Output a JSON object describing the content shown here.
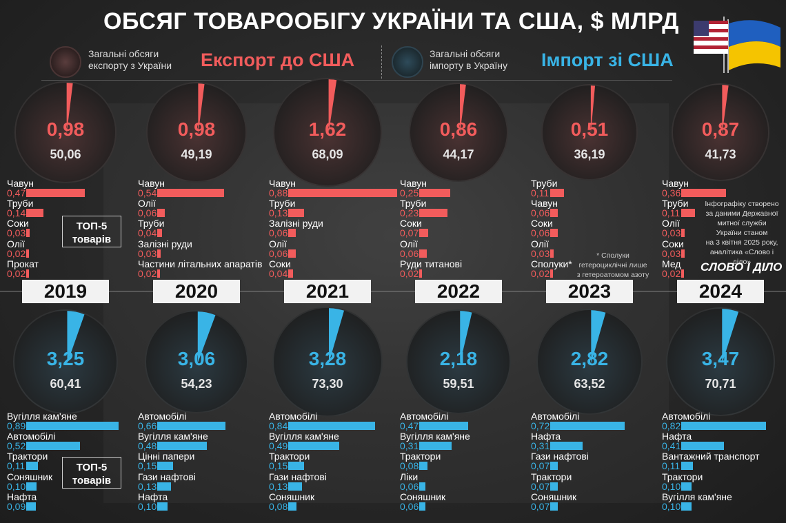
{
  "title": "ОБСЯГ ТОВАРООБІГУ УКРАЇНИ ТА США, $ МЛРД",
  "legend": {
    "export_caption": "Загальні обсяги експорту з України",
    "export_label": "Експорт до США",
    "import_caption": "Загальні обсяги імпорту в Україну",
    "import_label": "Імпорт зі США"
  },
  "top5_label_line1": "ТОП-5",
  "top5_label_line2": "товарів",
  "footnote": {
    "line1": "* Сполуки",
    "line2": "гетероциклічні лише",
    "line3": "з гетероатомом азоту"
  },
  "source_note": {
    "line1": "Інфографіку створено",
    "line2": "за даними Державної",
    "line3": "митної служби",
    "line4": "України станом",
    "line5": "на 3 квітня 2025 року,",
    "line6": "аналітика «Слово і діло»"
  },
  "brand": "СЛОВО І ДІЛО",
  "colors": {
    "export": "#f25c5c",
    "import": "#39b4e6",
    "export_circle": "#4a3232",
    "import_circle": "#2b3a42"
  },
  "chart_data": {
    "type": "pie",
    "years": [
      {
        "year": "2019",
        "export_to_usa": "0,98",
        "export_total": "50,06",
        "import_from_usa": "3,25",
        "import_total": "60,41",
        "export_top": [
          {
            "name": "Чавун",
            "value": "0,47"
          },
          {
            "name": "Труби",
            "value": "0,14"
          },
          {
            "name": "Соки",
            "value": "0,03"
          },
          {
            "name": "Олії",
            "value": "0,02"
          },
          {
            "name": "Прокат",
            "value": "0,02"
          }
        ],
        "import_top": [
          {
            "name": "Вугілля кам'яне",
            "value": "0,89"
          },
          {
            "name": "Автомобілі",
            "value": "0,52"
          },
          {
            "name": "Трактори",
            "value": "0,11"
          },
          {
            "name": "Соняшник",
            "value": "0,10"
          },
          {
            "name": "Нафта",
            "value": "0,09"
          }
        ]
      },
      {
        "year": "2020",
        "export_to_usa": "0,98",
        "export_total": "49,19",
        "import_from_usa": "3,06",
        "import_total": "54,23",
        "export_top": [
          {
            "name": "Чавун",
            "value": "0,54"
          },
          {
            "name": "Олії",
            "value": "0,06"
          },
          {
            "name": "Труби",
            "value": "0,04"
          },
          {
            "name": "Залізні руди",
            "value": "0,03"
          },
          {
            "name": "Частини літальних апаратів",
            "value": "0,02"
          }
        ],
        "import_top": [
          {
            "name": "Автомобілі",
            "value": "0,66"
          },
          {
            "name": "Вугілля кам'яне",
            "value": "0,48"
          },
          {
            "name": "Цінні папери",
            "value": "0,15"
          },
          {
            "name": "Гази нафтові",
            "value": "0,13"
          },
          {
            "name": "Нафта",
            "value": "0,10"
          }
        ]
      },
      {
        "year": "2021",
        "export_to_usa": "1,62",
        "export_total": "68,09",
        "import_from_usa": "3,28",
        "import_total": "73,30",
        "export_top": [
          {
            "name": "Чавун",
            "value": "0,88"
          },
          {
            "name": "Труби",
            "value": "0,13"
          },
          {
            "name": "Залізні руди",
            "value": "0,06"
          },
          {
            "name": "Олії",
            "value": "0,06"
          },
          {
            "name": "Соки",
            "value": "0,04"
          }
        ],
        "import_top": [
          {
            "name": "Автомобілі",
            "value": "0,84"
          },
          {
            "name": "Вугілля кам'яне",
            "value": "0,49"
          },
          {
            "name": "Трактори",
            "value": "0,15"
          },
          {
            "name": "Гази нафтові",
            "value": "0,13"
          },
          {
            "name": "Соняшник",
            "value": "0,08"
          }
        ]
      },
      {
        "year": "2022",
        "export_to_usa": "0,86",
        "export_total": "44,17",
        "import_from_usa": "2,18",
        "import_total": "59,51",
        "export_top": [
          {
            "name": "Чавун",
            "value": "0,25"
          },
          {
            "name": "Труби",
            "value": "0,23"
          },
          {
            "name": "Соки",
            "value": "0,07"
          },
          {
            "name": "Олії",
            "value": "0,06"
          },
          {
            "name": "Руди титанові",
            "value": "0,02"
          }
        ],
        "import_top": [
          {
            "name": "Автомобілі",
            "value": "0,47"
          },
          {
            "name": "Вугілля кам'яне",
            "value": "0,31"
          },
          {
            "name": "Трактори",
            "value": "0,08"
          },
          {
            "name": "Ліки",
            "value": "0,06"
          },
          {
            "name": "Соняшник",
            "value": "0,06"
          }
        ]
      },
      {
        "year": "2023",
        "export_to_usa": "0,51",
        "export_total": "36,19",
        "import_from_usa": "2,82",
        "import_total": "63,52",
        "export_top": [
          {
            "name": "Труби",
            "value": "0,11"
          },
          {
            "name": "Чавун",
            "value": "0,06"
          },
          {
            "name": "Соки",
            "value": "0,06"
          },
          {
            "name": "Олії",
            "value": "0,03"
          },
          {
            "name": "Сполуки*",
            "value": "0,02"
          }
        ],
        "import_top": [
          {
            "name": "Автомобілі",
            "value": "0,72"
          },
          {
            "name": "Нафта",
            "value": "0,31"
          },
          {
            "name": "Гази нафтові",
            "value": "0,07"
          },
          {
            "name": "Трактори",
            "value": "0,07"
          },
          {
            "name": "Соняшник",
            "value": "0,07"
          }
        ]
      },
      {
        "year": "2024",
        "export_to_usa": "0,87",
        "export_total": "41,73",
        "import_from_usa": "3,47",
        "import_total": "70,71",
        "export_top": [
          {
            "name": "Чавун",
            "value": "0,36"
          },
          {
            "name": "Труби",
            "value": "0,11"
          },
          {
            "name": "Олії",
            "value": "0,03"
          },
          {
            "name": "Соки",
            "value": "0,03"
          },
          {
            "name": "Мед",
            "value": "0,02"
          }
        ],
        "import_top": [
          {
            "name": "Автомобілі",
            "value": "0,82"
          },
          {
            "name": "Нафта",
            "value": "0,41"
          },
          {
            "name": "Вантажний транспорт",
            "value": "0,11"
          },
          {
            "name": "Трактори",
            "value": "0,10"
          },
          {
            "name": "Вугілля кам'яне",
            "value": "0,10"
          }
        ]
      }
    ]
  }
}
